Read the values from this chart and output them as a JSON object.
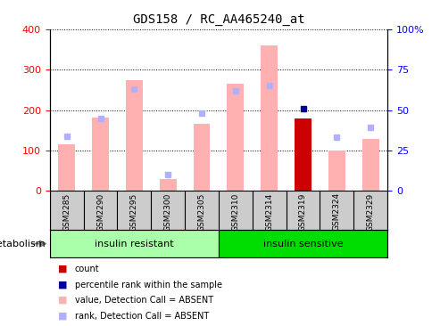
{
  "title": "GDS158 / RC_AA465240_at",
  "samples": [
    "GSM2285",
    "GSM2290",
    "GSM2295",
    "GSM2300",
    "GSM2305",
    "GSM2310",
    "GSM2314",
    "GSM2319",
    "GSM2324",
    "GSM2329"
  ],
  "value_absent": [
    115,
    182,
    275,
    30,
    165,
    265,
    360,
    null,
    100,
    128
  ],
  "rank_absent_pct": [
    34,
    45,
    63,
    10,
    48,
    62,
    65,
    null,
    33,
    39
  ],
  "count": [
    null,
    null,
    null,
    null,
    null,
    null,
    null,
    180,
    null,
    null
  ],
  "percentile_rank_pct": [
    null,
    null,
    null,
    null,
    null,
    null,
    null,
    51,
    null,
    null
  ],
  "ylim_left": [
    0,
    400
  ],
  "ylim_right": [
    0,
    100
  ],
  "yticks_left": [
    0,
    100,
    200,
    300,
    400
  ],
  "yticks_right": [
    0,
    25,
    50,
    75,
    100
  ],
  "ytick_labels_right": [
    "0",
    "25",
    "50",
    "75",
    "100%"
  ],
  "color_value_absent": "#ffb0b0",
  "color_rank_absent": "#b0b0ff",
  "color_count": "#cc0000",
  "color_percentile": "#000099",
  "group1_color": "#aaffaa",
  "group2_color": "#00dd00",
  "background_color": "#ffffff",
  "xtick_area_color": "#cccccc",
  "left_label": "metabolism",
  "n_group1": 5,
  "n_group2": 5,
  "group1_label": "insulin resistant",
  "group2_label": "insulin sensitive"
}
